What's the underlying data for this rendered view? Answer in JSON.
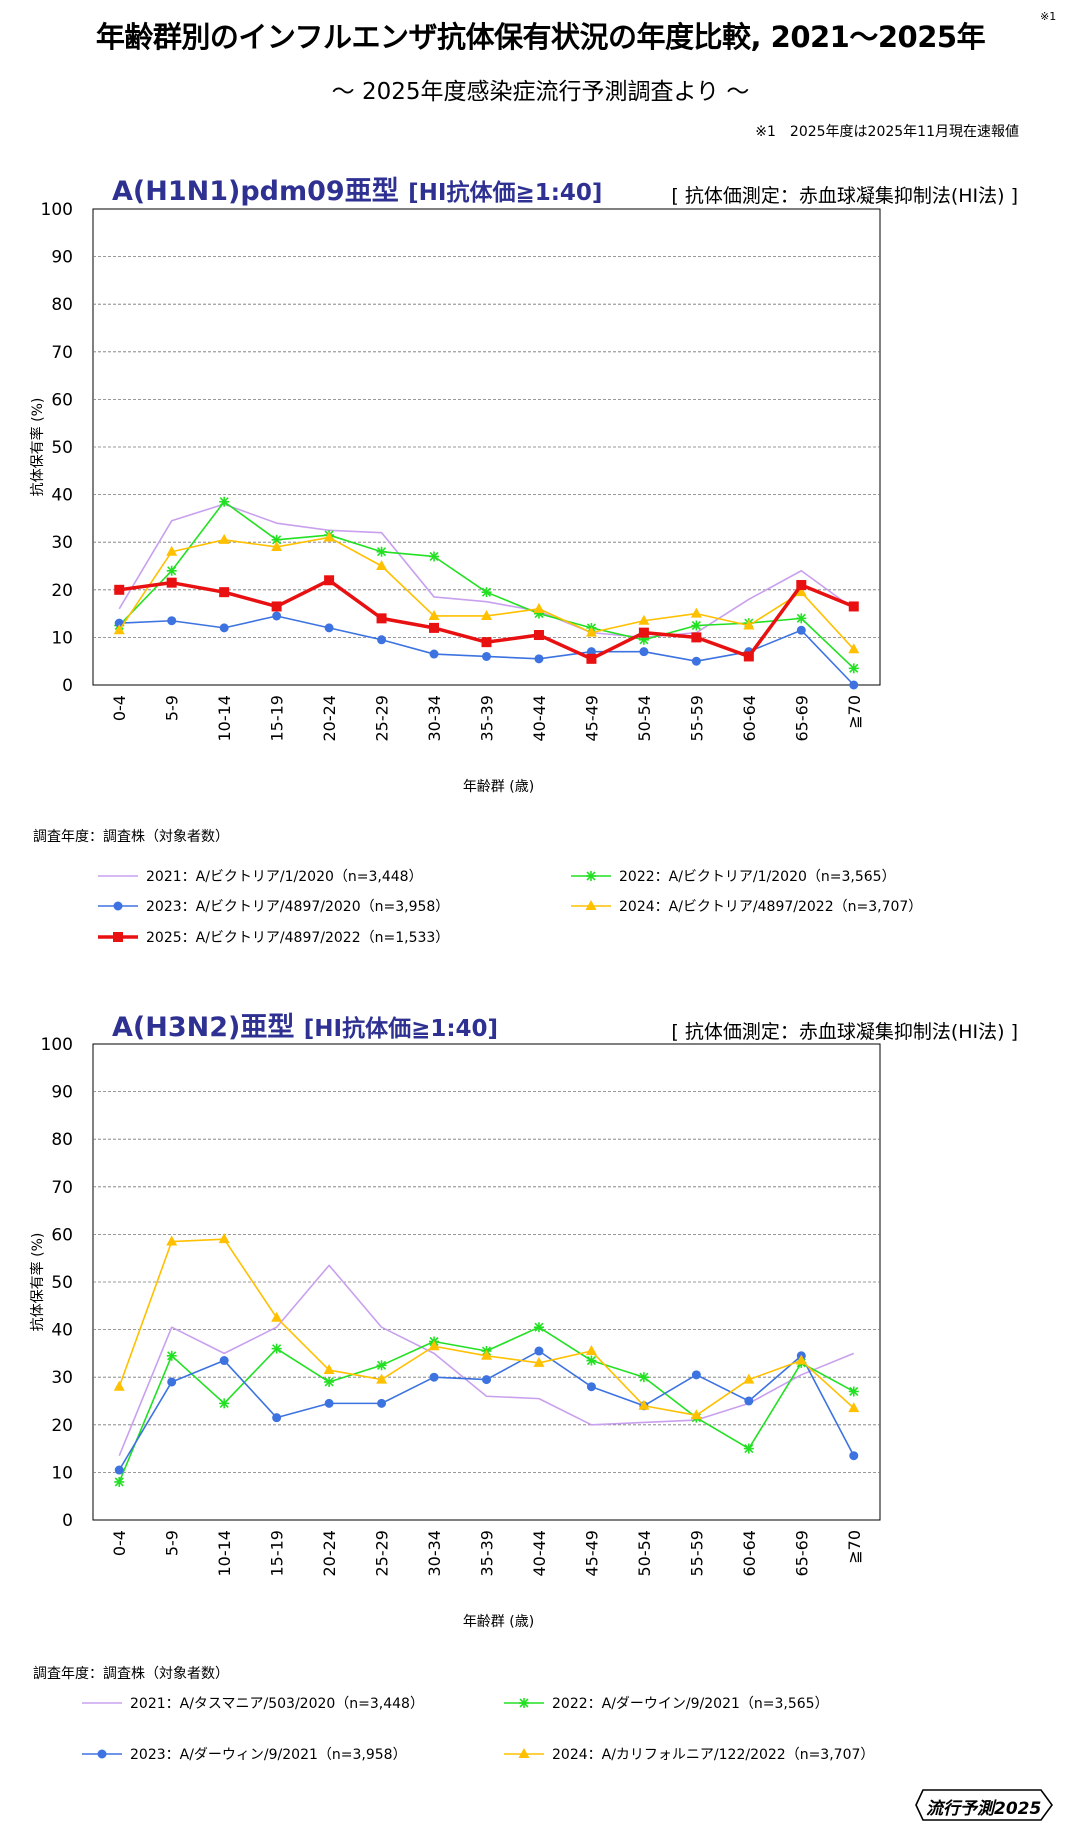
{
  "header": {
    "title": "年齢群別のインフルエンザ抗体保有状況の年度比較, 2021〜2025年",
    "title_note": "※1",
    "subtitle": "〜 2025年度感染症流行予測調査より 〜",
    "footnote": "※1　2025年度は2025年11月現在速報値"
  },
  "brand": {
    "label": "流行予測",
    "year": "2025"
  },
  "colors": {
    "title": "#2e3192",
    "2021": "#c9a0ee",
    "2022": "#22e022",
    "2023": "#3d73e0",
    "2024": "#ffc000",
    "2025": "#e81010"
  },
  "chart_data": [
    {
      "type": "line",
      "title": "A(H1N1)pdm09亜型",
      "title_condition": "[HI抗体価≧1:40]",
      "method": "[ 抗体価測定：赤血球凝集抑制法(HI法) ]",
      "xlabel": "年齢群 (歳)",
      "ylabel": "抗体保有率 (%)",
      "ylim": [
        0,
        100
      ],
      "yticks": [
        0,
        10,
        20,
        30,
        40,
        50,
        60,
        70,
        80,
        90,
        100
      ],
      "grid": true,
      "categories": [
        "0-4",
        "5-9",
        "10-14",
        "15-19",
        "20-24",
        "25-29",
        "30-34",
        "35-39",
        "40-44",
        "45-49",
        "50-54",
        "55-59",
        "60-64",
        "65-69",
        "≧70"
      ],
      "legend_title": "調査年度：調査株（対象者数）",
      "series": [
        {
          "name": "2021：A/ビクトリア/1/2020（n=3,448）",
          "year": "2021",
          "marker": "none",
          "values": [
            16,
            34.5,
            38,
            34,
            32.5,
            32,
            18.5,
            17.5,
            15.5,
            11,
            10,
            11,
            18,
            24,
            16
          ]
        },
        {
          "name": "2022：A/ビクトリア/1/2020（n=3,565）",
          "year": "2022",
          "marker": "star",
          "values": [
            12.5,
            24,
            38.5,
            30.5,
            31.5,
            28,
            27,
            19.5,
            15,
            12,
            9.5,
            12.5,
            13,
            14,
            3.5
          ]
        },
        {
          "name": "2023：A/ビクトリア/4897/2020（n=3,958）",
          "year": "2023",
          "marker": "circle",
          "values": [
            13,
            13.5,
            12,
            14.5,
            12,
            9.5,
            6.5,
            6,
            5.5,
            7,
            7,
            5,
            7,
            11.5,
            0
          ]
        },
        {
          "name": "2024：A/ビクトリア/4897/2022（n=3,707）",
          "year": "2024",
          "marker": "triangle",
          "values": [
            11.5,
            28,
            30.5,
            29,
            31,
            25,
            14.5,
            14.5,
            16,
            11,
            13.5,
            15,
            12.5,
            19.5,
            7.5
          ]
        },
        {
          "name": "2025：A/ビクトリア/4897/2022（n=1,533）",
          "year": "2025",
          "marker": "square",
          "values": [
            20,
            21.5,
            19.5,
            16.5,
            22,
            14,
            12,
            9,
            10.5,
            5.5,
            11,
            10,
            6,
            21,
            16.5
          ]
        }
      ]
    },
    {
      "type": "line",
      "title": "A(H3N2)亜型",
      "title_condition": "[HI抗体価≧1:40]",
      "method": "[ 抗体価測定：赤血球凝集抑制法(HI法) ]",
      "xlabel": "年齢群 (歳)",
      "ylabel": "抗体保有率 (%)",
      "ylim": [
        0,
        100
      ],
      "yticks": [
        0,
        10,
        20,
        30,
        40,
        50,
        60,
        70,
        80,
        90,
        100
      ],
      "grid": true,
      "categories": [
        "0-4",
        "5-9",
        "10-14",
        "15-19",
        "20-24",
        "25-29",
        "30-34",
        "35-39",
        "40-44",
        "45-49",
        "50-54",
        "55-59",
        "60-64",
        "65-69",
        "≧70"
      ],
      "legend_title": "調査年度：調査株（対象者数）",
      "series": [
        {
          "name": "2021：A/タスマニア/503/2020（n=3,448）",
          "year": "2021",
          "marker": "none",
          "values": [
            13.5,
            40.5,
            35,
            40.5,
            53.5,
            40.5,
            35,
            26,
            25.5,
            20,
            20.5,
            21,
            24.5,
            30.5,
            35
          ]
        },
        {
          "name": "2022：A/ダーウイン/9/2021（n=3,565）",
          "year": "2022",
          "marker": "star",
          "values": [
            8,
            34.5,
            24.5,
            36,
            29,
            32.5,
            37.5,
            35.5,
            40.5,
            33.5,
            30,
            21.5,
            15,
            33,
            27
          ]
        },
        {
          "name": "2023：A/ダーウィン/9/2021（n=3,958）",
          "year": "2023",
          "marker": "circle",
          "values": [
            10.5,
            29,
            33.5,
            21.5,
            24.5,
            24.5,
            30,
            29.5,
            35.5,
            28,
            24,
            30.5,
            25,
            34.5,
            13.5
          ]
        },
        {
          "name": "2024：A/カリフォルニア/122/2022（n=3,707）",
          "year": "2024",
          "marker": "triangle",
          "values": [
            28,
            58.5,
            59,
            42.5,
            31.5,
            29.5,
            36.5,
            34.5,
            33,
            35.5,
            24,
            22,
            29.5,
            33.5,
            23.5
          ]
        }
      ]
    }
  ]
}
